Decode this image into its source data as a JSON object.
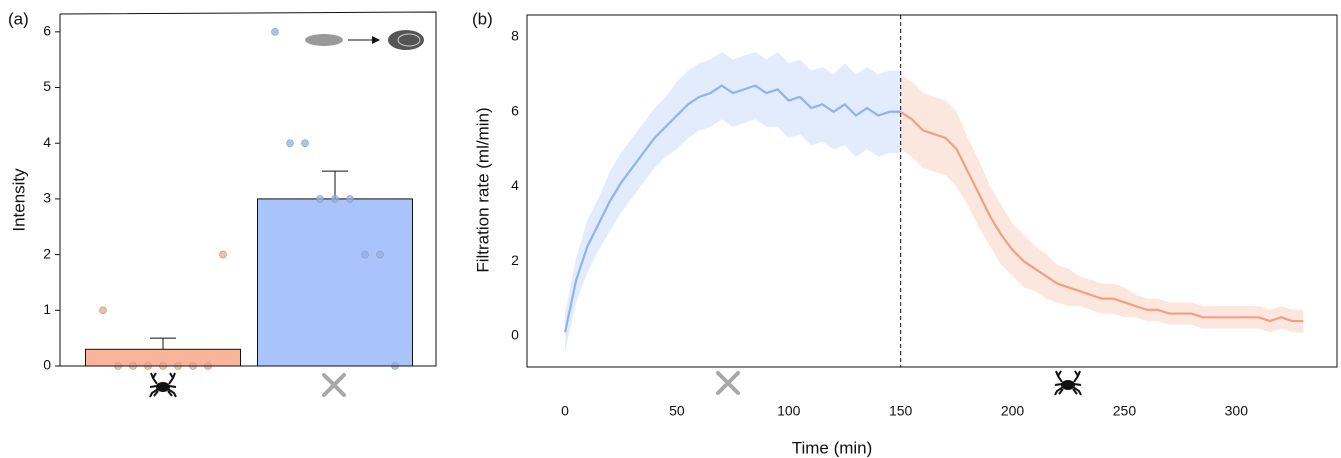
{
  "chart_data": [
    {
      "type": "bar",
      "panel_label": "(a)",
      "ylabel": "Intensity",
      "categories": [
        null,
        null
      ],
      "values": [
        0.3,
        3.0
      ],
      "errors": [
        0.2,
        0.5
      ],
      "colors": [
        "#f9b49a",
        "#a9c4fa"
      ],
      "points": [
        [
          1,
          0,
          0,
          0,
          0,
          0,
          0,
          0,
          2
        ],
        [
          6,
          4,
          4,
          3,
          3,
          3,
          2,
          2,
          0
        ]
      ],
      "point_colors": [
        "#f0a58a",
        "#8fb0ee"
      ],
      "ylim": [
        0,
        6.32
      ],
      "yticks": [
        0,
        1,
        2,
        3,
        4,
        5,
        6
      ]
    },
    {
      "type": "line",
      "panel_label": "(b)",
      "xlabel": "Time (min)",
      "ylabel": "Filtration rate (ml/min)",
      "series": [
        {
          "color": "#8fb2f4",
          "x": [
            0,
            5,
            10,
            15,
            20,
            25,
            30,
            35,
            40,
            45,
            50,
            55,
            60,
            65,
            70,
            75,
            80,
            85,
            90,
            95,
            100,
            105,
            110,
            115,
            120,
            125,
            130,
            135,
            140,
            145,
            150
          ],
          "values": [
            0.1,
            1.5,
            2.4,
            3.0,
            3.6,
            4.1,
            4.5,
            4.9,
            5.3,
            5.6,
            5.9,
            6.2,
            6.4,
            6.5,
            6.7,
            6.5,
            6.6,
            6.7,
            6.5,
            6.6,
            6.3,
            6.4,
            6.1,
            6.2,
            6.0,
            6.2,
            5.9,
            6.1,
            5.9,
            6.0,
            6.0
          ],
          "lower": [
            -0.4,
            0.9,
            1.7,
            2.3,
            2.8,
            3.3,
            3.7,
            4.1,
            4.5,
            4.8,
            5.0,
            5.3,
            5.5,
            5.6,
            5.8,
            5.6,
            5.7,
            5.8,
            5.6,
            5.6,
            5.3,
            5.4,
            5.1,
            5.2,
            5.0,
            5.1,
            4.8,
            5.0,
            4.8,
            4.9,
            4.9
          ],
          "upper": [
            0.6,
            2.1,
            3.1,
            3.7,
            4.4,
            4.9,
            5.3,
            5.7,
            6.1,
            6.4,
            6.8,
            7.1,
            7.3,
            7.4,
            7.6,
            7.4,
            7.5,
            7.6,
            7.4,
            7.6,
            7.3,
            7.4,
            7.1,
            7.2,
            7.0,
            7.3,
            7.0,
            7.2,
            7.0,
            7.1,
            7.1
          ]
        },
        {
          "color": "#f2a07e",
          "x": [
            150,
            155,
            160,
            165,
            170,
            175,
            180,
            185,
            190,
            195,
            200,
            205,
            210,
            215,
            220,
            225,
            230,
            235,
            240,
            245,
            250,
            255,
            260,
            265,
            270,
            275,
            280,
            285,
            290,
            295,
            300,
            305,
            310,
            315,
            320,
            325,
            330
          ],
          "values": [
            6.0,
            5.8,
            5.5,
            5.4,
            5.3,
            5.0,
            4.4,
            3.8,
            3.2,
            2.7,
            2.3,
            2.0,
            1.8,
            1.6,
            1.4,
            1.3,
            1.2,
            1.1,
            1.0,
            1.0,
            0.9,
            0.8,
            0.7,
            0.7,
            0.6,
            0.6,
            0.6,
            0.5,
            0.5,
            0.5,
            0.5,
            0.5,
            0.5,
            0.4,
            0.5,
            0.4,
            0.4
          ],
          "lower": [
            5.0,
            4.8,
            4.5,
            4.4,
            4.3,
            4.0,
            3.5,
            2.9,
            2.4,
            1.9,
            1.6,
            1.3,
            1.2,
            1.0,
            0.9,
            0.8,
            0.8,
            0.7,
            0.6,
            0.6,
            0.5,
            0.5,
            0.4,
            0.4,
            0.3,
            0.3,
            0.3,
            0.2,
            0.2,
            0.2,
            0.2,
            0.2,
            0.2,
            0.1,
            0.2,
            0.1,
            0.1
          ],
          "upper": [
            7.0,
            6.8,
            6.5,
            6.4,
            6.3,
            6.0,
            5.3,
            4.7,
            4.0,
            3.5,
            3.0,
            2.7,
            2.4,
            2.2,
            1.9,
            1.8,
            1.6,
            1.5,
            1.4,
            1.4,
            1.3,
            1.1,
            1.0,
            1.0,
            0.9,
            0.9,
            0.9,
            0.8,
            0.8,
            0.8,
            0.8,
            0.8,
            0.8,
            0.7,
            0.8,
            0.7,
            0.7
          ]
        }
      ],
      "vline": 150,
      "xlim": [
        -17,
        345
      ],
      "xticks": [
        0,
        50,
        100,
        150,
        200,
        250,
        300
      ],
      "ylim": [
        -0.83,
        8.59
      ],
      "yticks": [
        0,
        2,
        4,
        6,
        8
      ]
    }
  ]
}
